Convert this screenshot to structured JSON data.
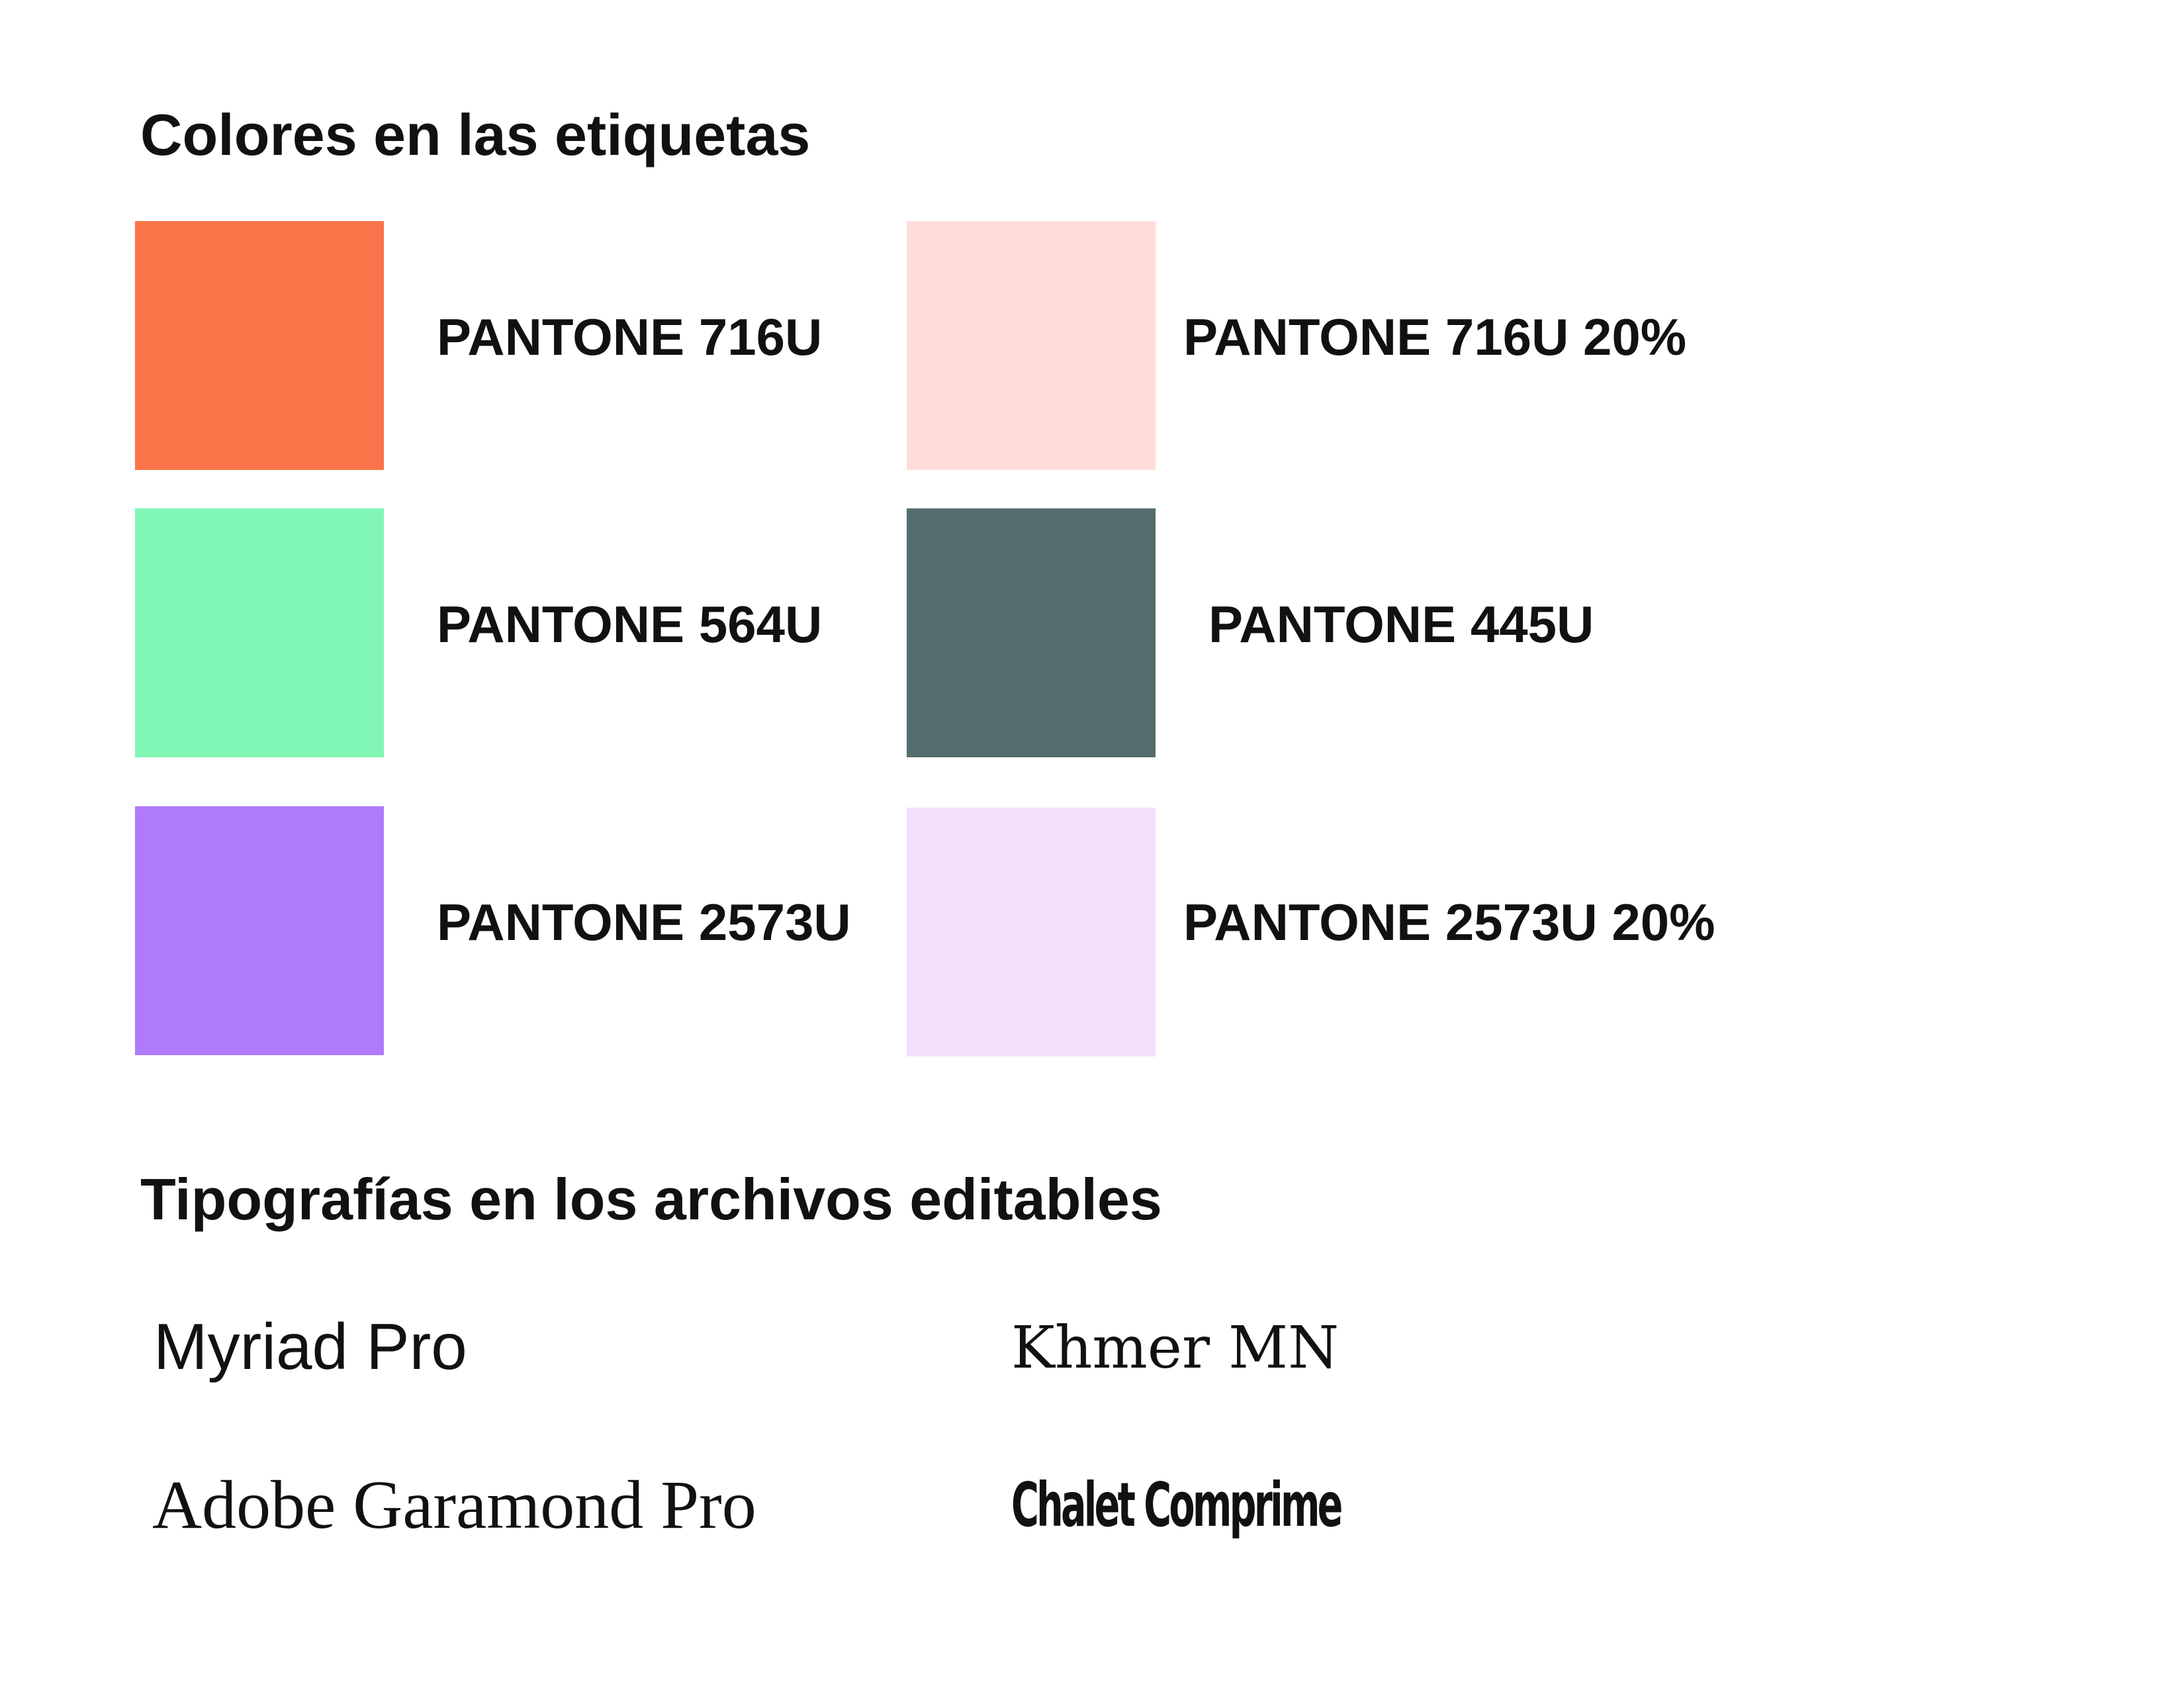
{
  "colors_section": {
    "title": "Colores en las etiquetas",
    "swatches": [
      {
        "label": "PANTONE 716U",
        "color": "#FA7349"
      },
      {
        "label": "PANTONE 716U 20%",
        "color": "#FEDDD9"
      },
      {
        "label": "PANTONE 564U",
        "color": "#80F7B4"
      },
      {
        "label": "PANTONE 445U",
        "color": "#556D6C"
      },
      {
        "label": "PANTONE 2573U",
        "color": "#AF7BFC"
      },
      {
        "label": "PANTONE 2573U 20%",
        "color": "#F3E0FD"
      }
    ]
  },
  "typography_section": {
    "title": "Tipografías en los archivos editables",
    "fonts": [
      {
        "label": "Myriad Pro"
      },
      {
        "label": "Khmer MN"
      },
      {
        "label": "Adobe Garamond Pro"
      },
      {
        "label": "Chalet Comprime"
      }
    ]
  }
}
